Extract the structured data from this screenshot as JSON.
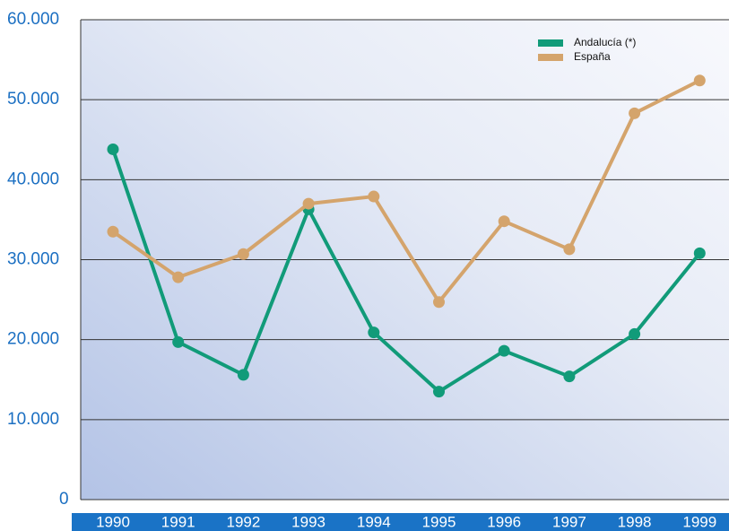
{
  "chart_data": {
    "type": "line",
    "categories": [
      "1990",
      "1991",
      "1992",
      "1993",
      "1994",
      "1995",
      "1996",
      "1997",
      "1998",
      "1999"
    ],
    "series": [
      {
        "name": "Andalucía (*)",
        "color": "#119b79",
        "values": [
          43800,
          19700,
          15600,
          36300,
          20900,
          13500,
          18600,
          15400,
          20700,
          30800
        ]
      },
      {
        "name": "España",
        "color": "#d4a46c",
        "values": [
          33500,
          27800,
          30700,
          37000,
          37900,
          24700,
          34800,
          31300,
          48300,
          52400
        ]
      }
    ],
    "ylim": [
      0,
      60000
    ],
    "yticks": [
      0,
      {
        "value": 10000,
        "label": "10.000"
      },
      {
        "value": 20000,
        "label": "20.000"
      },
      {
        "value": 30000,
        "label": "30.000"
      },
      {
        "value": 40000,
        "label": "40.000"
      },
      {
        "value": 50000,
        "label": "50.000"
      },
      {
        "value": 60000,
        "label": "60.000"
      }
    ],
    "grid": true,
    "legend": "upper right"
  }
}
